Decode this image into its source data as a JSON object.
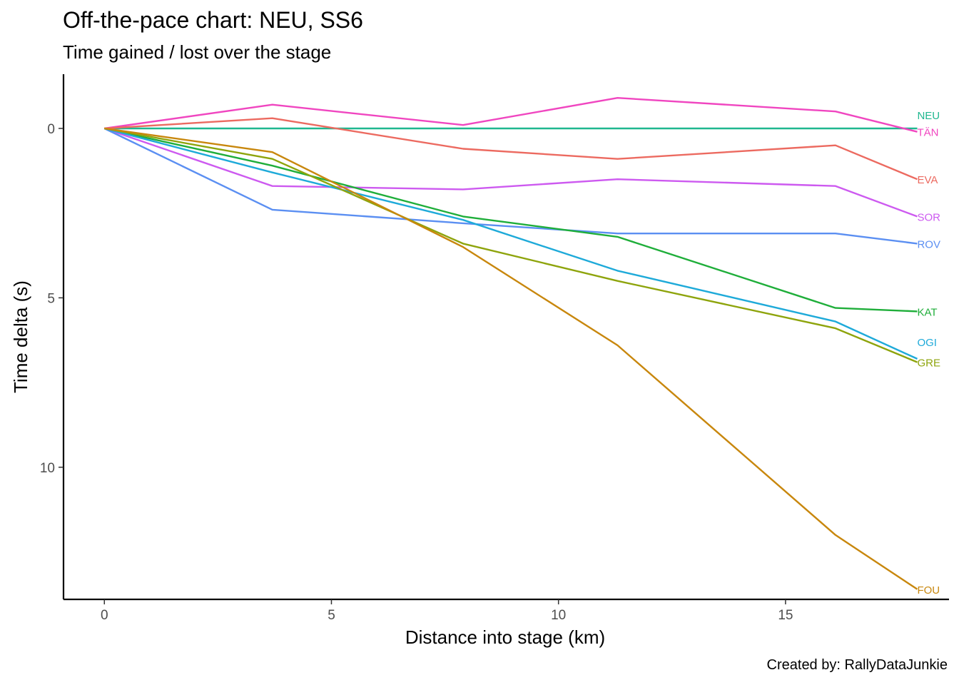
{
  "chart_data": {
    "type": "line",
    "title": "Off-the-pace chart: NEU, SS6",
    "subtitle": "Time gained / lost over the stage",
    "xlabel": "Distance into stage (km)",
    "ylabel": "Time delta (s)",
    "caption": "Created by: RallyDataJunkie",
    "xlim": [
      -0.9,
      18.6
    ],
    "ylim": [
      13.9,
      -1.6
    ],
    "y_reversed": true,
    "x_ticks": [
      0,
      5,
      10,
      15
    ],
    "y_ticks": [
      0,
      5,
      10
    ],
    "grid": false,
    "legend": "direct labels at line ends",
    "x": [
      0,
      3.7,
      7.9,
      11.3,
      16.1,
      17.9
    ],
    "series": [
      {
        "name": "NEU",
        "color": "#1fb78f",
        "values": [
          0,
          0,
          0,
          0,
          0,
          0
        ],
        "label_offset": -0.4
      },
      {
        "name": "TÄN",
        "color": "#f046c0",
        "values": [
          0,
          -0.7,
          -0.1,
          -0.9,
          -0.5,
          0.1
        ],
        "label_offset": 0
      },
      {
        "name": "EVA",
        "color": "#ec6a60",
        "values": [
          0,
          -0.3,
          0.6,
          0.9,
          0.5,
          1.5
        ],
        "label_offset": 0
      },
      {
        "name": "SOR",
        "color": "#cd5af0",
        "values": [
          0,
          1.7,
          1.8,
          1.5,
          1.7,
          2.6
        ],
        "label_offset": 0
      },
      {
        "name": "ROV",
        "color": "#5b8ff2",
        "values": [
          0,
          2.4,
          2.8,
          3.1,
          3.1,
          3.4
        ],
        "label_offset": 0
      },
      {
        "name": "KAT",
        "color": "#1fae3a",
        "values": [
          0,
          1.1,
          2.6,
          3.2,
          5.3,
          5.4
        ],
        "label_offset": 0
      },
      {
        "name": "OGI",
        "color": "#1eaad9",
        "values": [
          0,
          1.3,
          2.7,
          4.2,
          5.7,
          6.8
        ],
        "label_offset": -0.5
      },
      {
        "name": "GRE",
        "color": "#8ea40c",
        "values": [
          0,
          0.9,
          3.4,
          4.5,
          5.9,
          6.9
        ],
        "label_offset": 0
      },
      {
        "name": "FOU",
        "color": "#c8870d",
        "values": [
          0,
          0.7,
          3.5,
          6.4,
          12.0,
          13.6
        ],
        "label_offset": 0
      }
    ]
  }
}
